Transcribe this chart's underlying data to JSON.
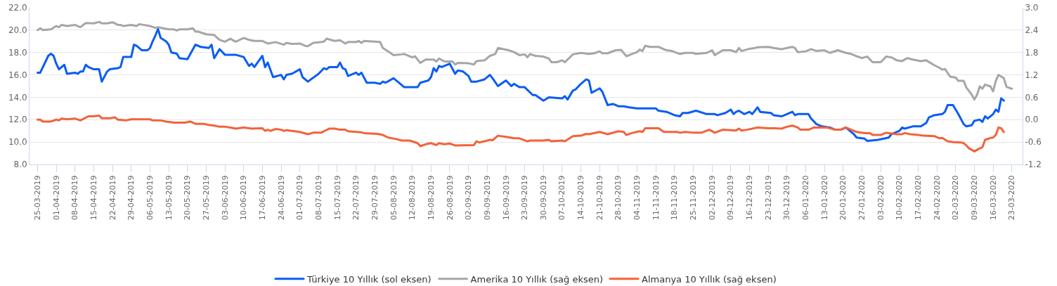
{
  "chart_data": {
    "type": "line",
    "grid": "y",
    "legend": "bottom",
    "xlim": [
      "2019-03-22",
      "2020-03-27"
    ],
    "xticks": [
      {
        "value": "2019-03-25",
        "label": "25-03-2019"
      },
      {
        "value": "2019-04-01",
        "label": "01-04-2019"
      },
      {
        "value": "2019-04-08",
        "label": "08-04-2019"
      },
      {
        "value": "2019-04-15",
        "label": "15-04-2019"
      },
      {
        "value": "2019-04-22",
        "label": "22-04-2019"
      },
      {
        "value": "2019-04-29",
        "label": "29-04-2019"
      },
      {
        "value": "2019-05-06",
        "label": "06-05-2019"
      },
      {
        "value": "2019-05-13",
        "label": "13-05-2019"
      },
      {
        "value": "2019-05-20",
        "label": "20-05-2019"
      },
      {
        "value": "2019-05-27",
        "label": "27-05-2019"
      },
      {
        "value": "2019-06-03",
        "label": "03-06-2019"
      },
      {
        "value": "2019-06-10",
        "label": "10-06-2019"
      },
      {
        "value": "2019-06-17",
        "label": "17-06-2019"
      },
      {
        "value": "2019-06-24",
        "label": "24-06-2019"
      },
      {
        "value": "2019-07-01",
        "label": "01-07-2019"
      },
      {
        "value": "2019-07-08",
        "label": "08-07-2019"
      },
      {
        "value": "2019-07-15",
        "label": "15-07-2019"
      },
      {
        "value": "2019-07-22",
        "label": "22-07-2019"
      },
      {
        "value": "2019-07-29",
        "label": "29-07-2019"
      },
      {
        "value": "2019-08-05",
        "label": "05-08-2019"
      },
      {
        "value": "2019-08-12",
        "label": "12-08-2019"
      },
      {
        "value": "2019-08-19",
        "label": "19-08-2019"
      },
      {
        "value": "2019-08-26",
        "label": "26-08-2019"
      },
      {
        "value": "2019-09-02",
        "label": "02-09-2019"
      },
      {
        "value": "2019-09-09",
        "label": "09-09-2019"
      },
      {
        "value": "2019-09-16",
        "label": "16-09-2019"
      },
      {
        "value": "2019-09-23",
        "label": "23-09-2019"
      },
      {
        "value": "2019-09-30",
        "label": "30-09-2019"
      },
      {
        "value": "2019-10-07",
        "label": "07-10-2019"
      },
      {
        "value": "2019-10-14",
        "label": "14-10-2019"
      },
      {
        "value": "2019-10-21",
        "label": "21-10-2019"
      },
      {
        "value": "2019-10-28",
        "label": "28-10-2019"
      },
      {
        "value": "2019-11-04",
        "label": "04-11-2019"
      },
      {
        "value": "2019-11-11",
        "label": "11-11-2019"
      },
      {
        "value": "2019-11-18",
        "label": "18-11-2019"
      },
      {
        "value": "2019-11-25",
        "label": "25-11-2019"
      },
      {
        "value": "2019-12-02",
        "label": "02-12-2019"
      },
      {
        "value": "2019-12-09",
        "label": "09-12-2019"
      },
      {
        "value": "2019-12-16",
        "label": "16-12-2019"
      },
      {
        "value": "2019-12-23",
        "label": "23-12-2019"
      },
      {
        "value": "2019-12-30",
        "label": "30-12-2019"
      },
      {
        "value": "2020-01-06",
        "label": "06-01-2020"
      },
      {
        "value": "2020-01-13",
        "label": "13-01-2020"
      },
      {
        "value": "2020-01-20",
        "label": "20-01-2020"
      },
      {
        "value": "2020-01-27",
        "label": "27-01-2020"
      },
      {
        "value": "2020-02-03",
        "label": "03-02-2020"
      },
      {
        "value": "2020-02-10",
        "label": "10-02-2020"
      },
      {
        "value": "2020-02-17",
        "label": "17-02-2020"
      },
      {
        "value": "2020-02-24",
        "label": "24-02-2020"
      },
      {
        "value": "2020-03-02",
        "label": "02-03-2020"
      },
      {
        "value": "2020-03-09",
        "label": "09-03-2020"
      },
      {
        "value": "2020-03-16",
        "label": "16-03-2020"
      },
      {
        "value": "2020-03-23",
        "label": "23-03-2020"
      }
    ],
    "ylim": [
      8,
      22
    ],
    "yticks": [
      {
        "value": 8,
        "label": "8.0"
      },
      {
        "value": 10,
        "label": "10.0"
      },
      {
        "value": 12,
        "label": "12.0"
      },
      {
        "value": 14,
        "label": "14.0"
      },
      {
        "value": 16,
        "label": "16.0"
      },
      {
        "value": 18,
        "label": "18.0"
      },
      {
        "value": 20,
        "label": "20.0"
      },
      {
        "value": 22,
        "label": "22.0"
      }
    ],
    "y2lim": [
      -1.2,
      3.0
    ],
    "y2ticks": [
      {
        "value": -1.2,
        "label": "-1.2"
      },
      {
        "value": -0.6,
        "label": "-0.6"
      },
      {
        "value": 0,
        "label": "0.0"
      },
      {
        "value": 0.6,
        "label": "0.6"
      },
      {
        "value": 1.2,
        "label": "1.2"
      },
      {
        "value": 1.8,
        "label": "1.8"
      },
      {
        "value": 2.4,
        "label": "2.4"
      },
      {
        "value": 3.0,
        "label": "3.0"
      }
    ],
    "series": [
      {
        "name": "Türkiye 10 Yıllık (sol eksen)",
        "color": "#0a5cf5",
        "axis": "y",
        "x": [
          "2019-03-25",
          "2019-03-26",
          "2019-03-29",
          "2019-03-30",
          "2019-03-31",
          "2019-04-01",
          "2019-04-02",
          "2019-04-04",
          "2019-04-05",
          "2019-04-08",
          "2019-04-09",
          "2019-04-10",
          "2019-04-11",
          "2019-04-12",
          "2019-04-13",
          "2019-04-15",
          "2019-04-17",
          "2019-04-18",
          "2019-04-20",
          "2019-04-21",
          "2019-04-24",
          "2019-04-25",
          "2019-04-26",
          "2019-04-29",
          "2019-04-30",
          "2019-05-01",
          "2019-05-03",
          "2019-05-05",
          "2019-05-06",
          "2019-05-07",
          "2019-05-08",
          "2019-05-09",
          "2019-05-10",
          "2019-05-12",
          "2019-05-13",
          "2019-05-14",
          "2019-05-16",
          "2019-05-17",
          "2019-05-20",
          "2019-05-23",
          "2019-05-25",
          "2019-05-28",
          "2019-05-29",
          "2019-05-30",
          "2019-06-01",
          "2019-06-03",
          "2019-06-07",
          "2019-06-10",
          "2019-06-12",
          "2019-06-13",
          "2019-06-14",
          "2019-06-17",
          "2019-06-18",
          "2019-06-19",
          "2019-06-21",
          "2019-06-24",
          "2019-06-25",
          "2019-06-26",
          "2019-06-28",
          "2019-07-01",
          "2019-07-02",
          "2019-07-04",
          "2019-07-08",
          "2019-07-10",
          "2019-07-11",
          "2019-07-12",
          "2019-07-15",
          "2019-07-16",
          "2019-07-17",
          "2019-07-18",
          "2019-07-19",
          "2019-07-22",
          "2019-07-23",
          "2019-07-24",
          "2019-07-26",
          "2019-07-29",
          "2019-07-31",
          "2019-08-01",
          "2019-08-02",
          "2019-08-05",
          "2019-08-07",
          "2019-08-09",
          "2019-08-14",
          "2019-08-15",
          "2019-08-18",
          "2019-08-19",
          "2019-08-20",
          "2019-08-21",
          "2019-08-22",
          "2019-08-23",
          "2019-08-26",
          "2019-08-28",
          "2019-08-29",
          "2019-08-31",
          "2019-09-02",
          "2019-09-03",
          "2019-09-05",
          "2019-09-08",
          "2019-09-10",
          "2019-09-11",
          "2019-09-13",
          "2019-09-16",
          "2019-09-18",
          "2019-09-19",
          "2019-09-21",
          "2019-09-23",
          "2019-09-26",
          "2019-09-27",
          "2019-09-30",
          "2019-10-02",
          "2019-10-07",
          "2019-10-08",
          "2019-10-09",
          "2019-10-11",
          "2019-10-12",
          "2019-10-14",
          "2019-10-16",
          "2019-10-17",
          "2019-10-18",
          "2019-10-21",
          "2019-10-22",
          "2019-10-24",
          "2019-10-26",
          "2019-10-28",
          "2019-10-30",
          "2019-11-01",
          "2019-11-04",
          "2019-11-11",
          "2019-11-12",
          "2019-11-15",
          "2019-11-18",
          "2019-11-20",
          "2019-11-21",
          "2019-11-23",
          "2019-11-26",
          "2019-11-30",
          "2019-12-03",
          "2019-12-04",
          "2019-12-07",
          "2019-12-09",
          "2019-12-10",
          "2019-12-11",
          "2019-12-12",
          "2019-12-14",
          "2019-12-16",
          "2019-12-17",
          "2019-12-19",
          "2019-12-20",
          "2019-12-24",
          "2019-12-25",
          "2019-12-28",
          "2019-12-30",
          "2020-01-01",
          "2020-01-02",
          "2020-01-03",
          "2020-01-07",
          "2020-01-08",
          "2020-01-10",
          "2020-01-12",
          "2020-01-15",
          "2020-01-17",
          "2020-01-19",
          "2020-01-21",
          "2020-01-22",
          "2020-01-24",
          "2020-01-25",
          "2020-01-28",
          "2020-01-29",
          "2020-02-02",
          "2020-02-06",
          "2020-02-07",
          "2020-02-10",
          "2020-02-11",
          "2020-02-12",
          "2020-02-15",
          "2020-02-18",
          "2020-02-20",
          "2020-02-21",
          "2020-02-23",
          "2020-02-26",
          "2020-02-27",
          "2020-02-28",
          "2020-03-01",
          "2020-03-02",
          "2020-03-03",
          "2020-03-05",
          "2020-03-06",
          "2020-03-08",
          "2020-03-09",
          "2020-03-11",
          "2020-03-12",
          "2020-03-13",
          "2020-03-14",
          "2020-03-16",
          "2020-03-17",
          "2020-03-18",
          "2020-03-19",
          "2020-03-20"
        ],
        "values": [
          16.2,
          16.2,
          17.7,
          17.9,
          17.7,
          17.0,
          16.5,
          16.9,
          16.1,
          16.2,
          16.1,
          16.3,
          16.3,
          16.9,
          16.7,
          16.5,
          16.5,
          15.4,
          16.3,
          16.5,
          16.6,
          16.7,
          17.6,
          17.6,
          18.7,
          18.6,
          18.2,
          18.2,
          18.4,
          19.0,
          19.5,
          20.1,
          19.3,
          19.0,
          18.7,
          18.0,
          17.9,
          17.5,
          17.4,
          18.7,
          18.5,
          18.4,
          18.7,
          17.5,
          18.3,
          17.8,
          17.8,
          17.6,
          16.8,
          17.0,
          16.7,
          17.7,
          16.7,
          17.1,
          15.8,
          16.0,
          15.6,
          16.0,
          16.1,
          16.5,
          15.8,
          15.4,
          16.1,
          16.6,
          16.5,
          16.7,
          16.7,
          17.1,
          16.6,
          16.5,
          15.9,
          16.2,
          16.0,
          16.2,
          15.3,
          15.3,
          15.2,
          15.4,
          15.3,
          15.7,
          15.3,
          14.9,
          14.9,
          15.3,
          15.5,
          15.8,
          16.6,
          16.3,
          16.8,
          16.7,
          17.0,
          16.1,
          16.4,
          16.3,
          15.9,
          15.4,
          15.4,
          15.6,
          16.0,
          15.7,
          15.0,
          15.5,
          15.0,
          15.2,
          14.9,
          14.9,
          14.2,
          14.2,
          13.7,
          14.0,
          13.9,
          14.1,
          13.8,
          14.6,
          14.7,
          15.2,
          15.6,
          15.5,
          14.4,
          14.8,
          14.5,
          13.3,
          13.4,
          13.2,
          13.2,
          13.1,
          13.0,
          13.0,
          12.8,
          12.7,
          12.4,
          12.3,
          12.6,
          12.6,
          12.8,
          12.5,
          12.5,
          12.4,
          12.6,
          12.9,
          12.5,
          12.7,
          12.8,
          12.5,
          12.7,
          12.5,
          13.1,
          12.7,
          12.6,
          12.4,
          12.3,
          12.5,
          12.7,
          12.4,
          12.5,
          12.5,
          12.1,
          11.6,
          11.4,
          11.3,
          11.1,
          11.1,
          11.3,
          11.1,
          10.7,
          10.4,
          10.3,
          10.1,
          10.2,
          10.4,
          10.7,
          11.0,
          11.3,
          11.2,
          11.4,
          11.4,
          11.7,
          12.2,
          12.4,
          12.5,
          12.7,
          13.3,
          13.3,
          12.9,
          12.5,
          11.6,
          11.4,
          11.5,
          11.9,
          12.0,
          11.8,
          12.3,
          12.1,
          12.5,
          12.9,
          12.7,
          13.9,
          13.7
        ]
      },
      {
        "name": "Amerika 10 Yıllık (sağ eksen)",
        "color": "#a6a6a6",
        "axis": "y2",
        "x": [
          "2019-03-25",
          "2019-03-26",
          "2019-03-27",
          "2019-03-30",
          "2019-04-01",
          "2019-04-02",
          "2019-04-03",
          "2019-04-05",
          "2019-04-08",
          "2019-04-09",
          "2019-04-10",
          "2019-04-12",
          "2019-04-15",
          "2019-04-17",
          "2019-04-18",
          "2019-04-20",
          "2019-04-22",
          "2019-04-24",
          "2019-04-25",
          "2019-04-26",
          "2019-04-29",
          "2019-05-01",
          "2019-05-02",
          "2019-05-06",
          "2019-05-08",
          "2019-05-09",
          "2019-05-11",
          "2019-05-13",
          "2019-05-15",
          "2019-05-16",
          "2019-05-17",
          "2019-05-20",
          "2019-05-22",
          "2019-05-23",
          "2019-05-24",
          "2019-05-27",
          "2019-05-30",
          "2019-05-31",
          "2019-06-01",
          "2019-06-03",
          "2019-06-05",
          "2019-06-07",
          "2019-06-10",
          "2019-06-12",
          "2019-06-14",
          "2019-06-17",
          "2019-06-19",
          "2019-06-22",
          "2019-06-25",
          "2019-06-26",
          "2019-06-28",
          "2019-07-01",
          "2019-07-03",
          "2019-07-04",
          "2019-07-06",
          "2019-07-09",
          "2019-07-10",
          "2019-07-11",
          "2019-07-14",
          "2019-07-16",
          "2019-07-18",
          "2019-07-19",
          "2019-07-22",
          "2019-07-23",
          "2019-07-24",
          "2019-07-25",
          "2019-07-31",
          "2019-08-01",
          "2019-08-04",
          "2019-08-05",
          "2019-08-08",
          "2019-08-09",
          "2019-08-12",
          "2019-08-13",
          "2019-08-15",
          "2019-08-17",
          "2019-08-20",
          "2019-08-21",
          "2019-08-22",
          "2019-08-24",
          "2019-08-27",
          "2019-08-28",
          "2019-08-29",
          "2019-09-02",
          "2019-09-04",
          "2019-09-05",
          "2019-09-08",
          "2019-09-10",
          "2019-09-12",
          "2019-09-13",
          "2019-09-17",
          "2019-09-19",
          "2019-09-21",
          "2019-09-23",
          "2019-09-24",
          "2019-09-25",
          "2019-09-27",
          "2019-09-30",
          "2019-10-02",
          "2019-10-03",
          "2019-10-05",
          "2019-10-07",
          "2019-10-08",
          "2019-10-11",
          "2019-10-14",
          "2019-10-17",
          "2019-10-19",
          "2019-10-21",
          "2019-10-22",
          "2019-10-24",
          "2019-10-27",
          "2019-10-29",
          "2019-10-31",
          "2019-11-02",
          "2019-11-04",
          "2019-11-05",
          "2019-11-06",
          "2019-11-07",
          "2019-11-09",
          "2019-11-12",
          "2019-11-15",
          "2019-11-17",
          "2019-11-20",
          "2019-11-22",
          "2019-11-25",
          "2019-11-26",
          "2019-11-30",
          "2019-12-02",
          "2019-12-03",
          "2019-12-06",
          "2019-12-09",
          "2019-12-11",
          "2019-12-12",
          "2019-12-13",
          "2019-12-16",
          "2019-12-18",
          "2019-12-19",
          "2019-12-23",
          "2019-12-25",
          "2019-12-28",
          "2019-12-30",
          "2020-01-01",
          "2020-01-02",
          "2020-01-03",
          "2020-01-06",
          "2020-01-08",
          "2020-01-10",
          "2020-01-13",
          "2020-01-15",
          "2020-01-18",
          "2020-01-21",
          "2020-01-23",
          "2020-01-25",
          "2020-01-27",
          "2020-01-29",
          "2020-01-30",
          "2020-01-31",
          "2020-02-03",
          "2020-02-04",
          "2020-02-05",
          "2020-02-07",
          "2020-02-09",
          "2020-02-11",
          "2020-02-13",
          "2020-02-15",
          "2020-02-18",
          "2020-02-20",
          "2020-02-23",
          "2020-02-25",
          "2020-02-26",
          "2020-02-27",
          "2020-02-29",
          "2020-03-02",
          "2020-03-03",
          "2020-03-05",
          "2020-03-06",
          "2020-03-08",
          "2020-03-09",
          "2020-03-10",
          "2020-03-11",
          "2020-03-12",
          "2020-03-13",
          "2020-03-15",
          "2020-03-16",
          "2020-03-17",
          "2020-03-18",
          "2020-03-20",
          "2020-03-21",
          "2020-03-23"
        ],
        "values": [
          2.4,
          2.45,
          2.4,
          2.42,
          2.51,
          2.48,
          2.54,
          2.51,
          2.54,
          2.51,
          2.48,
          2.59,
          2.58,
          2.62,
          2.58,
          2.58,
          2.61,
          2.54,
          2.54,
          2.51,
          2.54,
          2.51,
          2.56,
          2.51,
          2.46,
          2.48,
          2.45,
          2.42,
          2.42,
          2.39,
          2.42,
          2.42,
          2.45,
          2.36,
          2.36,
          2.29,
          2.27,
          2.2,
          2.14,
          2.09,
          2.17,
          2.09,
          2.19,
          2.14,
          2.11,
          2.11,
          2.04,
          2.08,
          2.01,
          2.06,
          2.03,
          2.04,
          1.98,
          1.97,
          2.06,
          2.08,
          2.09,
          2.17,
          2.11,
          2.13,
          2.04,
          2.08,
          2.08,
          2.11,
          2.06,
          2.11,
          2.08,
          1.92,
          1.78,
          1.73,
          1.75,
          1.76,
          1.67,
          1.7,
          1.52,
          1.61,
          1.61,
          1.56,
          1.64,
          1.56,
          1.56,
          1.48,
          1.52,
          1.51,
          1.48,
          1.57,
          1.59,
          1.71,
          1.76,
          1.92,
          1.86,
          1.81,
          1.73,
          1.75,
          1.67,
          1.76,
          1.71,
          1.69,
          1.64,
          1.54,
          1.54,
          1.59,
          1.54,
          1.75,
          1.79,
          1.76,
          1.78,
          1.83,
          1.78,
          1.78,
          1.86,
          1.87,
          1.7,
          1.76,
          1.81,
          1.88,
          1.84,
          1.98,
          1.95,
          1.95,
          1.86,
          1.84,
          1.76,
          1.79,
          1.79,
          1.76,
          1.79,
          1.86,
          1.73,
          1.86,
          1.86,
          1.81,
          1.92,
          1.84,
          1.9,
          1.92,
          1.94,
          1.95,
          1.92,
          1.89,
          1.92,
          1.95,
          1.92,
          1.81,
          1.83,
          1.89,
          1.84,
          1.86,
          1.79,
          1.86,
          1.79,
          1.76,
          1.7,
          1.65,
          1.69,
          1.61,
          1.54,
          1.54,
          1.61,
          1.69,
          1.67,
          1.59,
          1.57,
          1.65,
          1.61,
          1.57,
          1.59,
          1.46,
          1.39,
          1.34,
          1.36,
          1.15,
          1.13,
          1.04,
          1.04,
          0.86,
          0.67,
          0.54,
          0.67,
          0.89,
          0.83,
          0.94,
          0.89,
          0.76,
          1.04,
          1.2,
          1.11,
          0.88,
          0.83
        ]
      },
      {
        "name": "Almanya 10 Yıllık (sağ eksen)",
        "color": "#f4623a",
        "axis": "y2",
        "x": [
          "2019-03-25",
          "2019-03-26",
          "2019-03-27",
          "2019-03-30",
          "2019-04-01",
          "2019-04-02",
          "2019-04-03",
          "2019-04-05",
          "2019-04-08",
          "2019-04-10",
          "2019-04-13",
          "2019-04-15",
          "2019-04-17",
          "2019-04-18",
          "2019-04-21",
          "2019-04-23",
          "2019-04-24",
          "2019-04-27",
          "2019-04-29",
          "2019-05-06",
          "2019-05-07",
          "2019-05-10",
          "2019-05-12",
          "2019-05-15",
          "2019-05-19",
          "2019-05-21",
          "2019-05-23",
          "2019-05-26",
          "2019-05-28",
          "2019-05-30",
          "2019-06-01",
          "2019-06-03",
          "2019-06-05",
          "2019-06-07",
          "2019-06-10",
          "2019-06-13",
          "2019-06-17",
          "2019-06-18",
          "2019-06-19",
          "2019-06-20",
          "2019-06-22",
          "2019-06-24",
          "2019-06-25",
          "2019-06-26",
          "2019-07-01",
          "2019-07-04",
          "2019-07-06",
          "2019-07-09",
          "2019-07-10",
          "2019-07-12",
          "2019-07-14",
          "2019-07-16",
          "2019-07-18",
          "2019-07-19",
          "2019-07-24",
          "2019-07-25",
          "2019-07-30",
          "2019-08-01",
          "2019-08-03",
          "2019-08-06",
          "2019-08-08",
          "2019-08-11",
          "2019-08-14",
          "2019-08-15",
          "2019-08-17",
          "2019-08-19",
          "2019-08-21",
          "2019-08-22",
          "2019-08-24",
          "2019-08-26",
          "2019-08-28",
          "2019-09-04",
          "2019-09-05",
          "2019-09-06",
          "2019-09-08",
          "2019-09-10",
          "2019-09-11",
          "2019-09-13",
          "2019-09-16",
          "2019-09-19",
          "2019-09-21",
          "2019-09-24",
          "2019-09-25",
          "2019-09-30",
          "2019-10-02",
          "2019-10-03",
          "2019-10-07",
          "2019-10-08",
          "2019-10-11",
          "2019-10-14",
          "2019-10-16",
          "2019-10-17",
          "2019-10-21",
          "2019-10-24",
          "2019-10-28",
          "2019-10-30",
          "2019-10-31",
          "2019-11-02",
          "2019-11-05",
          "2019-11-06",
          "2019-11-07",
          "2019-11-12",
          "2019-11-14",
          "2019-11-19",
          "2019-11-20",
          "2019-11-22",
          "2019-11-25",
          "2019-11-28",
          "2019-12-01",
          "2019-12-03",
          "2019-12-06",
          "2019-12-11",
          "2019-12-12",
          "2019-12-13",
          "2019-12-15",
          "2019-12-19",
          "2019-12-23",
          "2019-12-25",
          "2019-12-28",
          "2019-12-30",
          "2020-01-01",
          "2020-01-03",
          "2020-01-04",
          "2020-01-07",
          "2020-01-08",
          "2020-01-09",
          "2020-01-14",
          "2020-01-17",
          "2020-01-19",
          "2020-01-21",
          "2020-01-23",
          "2020-01-25",
          "2020-01-28",
          "2020-01-30",
          "2020-01-31",
          "2020-02-03",
          "2020-02-05",
          "2020-02-06",
          "2020-02-09",
          "2020-02-11",
          "2020-02-12",
          "2020-02-14",
          "2020-02-17",
          "2020-02-19",
          "2020-02-23",
          "2020-02-25",
          "2020-02-26",
          "2020-02-28",
          "2020-03-01",
          "2020-03-04",
          "2020-03-05",
          "2020-03-06",
          "2020-03-07",
          "2020-03-09",
          "2020-03-11",
          "2020-03-12",
          "2020-03-13",
          "2020-03-15",
          "2020-03-16",
          "2020-03-17",
          "2020-03-18",
          "2020-03-19",
          "2020-03-20"
        ],
        "values": [
          0.0,
          0.0,
          -0.05,
          -0.05,
          0.0,
          -0.02,
          0.03,
          0.01,
          0.03,
          -0.02,
          0.09,
          0.09,
          0.11,
          0.04,
          0.04,
          0.06,
          0.0,
          -0.02,
          0.01,
          0.01,
          -0.02,
          -0.02,
          -0.05,
          -0.08,
          -0.08,
          -0.05,
          -0.11,
          -0.11,
          -0.14,
          -0.16,
          -0.19,
          -0.19,
          -0.21,
          -0.24,
          -0.21,
          -0.24,
          -0.23,
          -0.3,
          -0.27,
          -0.3,
          -0.25,
          -0.27,
          -0.3,
          -0.28,
          -0.33,
          -0.39,
          -0.35,
          -0.35,
          -0.31,
          -0.24,
          -0.24,
          -0.27,
          -0.27,
          -0.31,
          -0.34,
          -0.36,
          -0.38,
          -0.41,
          -0.48,
          -0.52,
          -0.56,
          -0.56,
          -0.63,
          -0.71,
          -0.66,
          -0.63,
          -0.68,
          -0.63,
          -0.66,
          -0.64,
          -0.69,
          -0.68,
          -0.58,
          -0.61,
          -0.58,
          -0.54,
          -0.55,
          -0.43,
          -0.46,
          -0.5,
          -0.5,
          -0.58,
          -0.56,
          -0.56,
          -0.54,
          -0.58,
          -0.56,
          -0.58,
          -0.44,
          -0.43,
          -0.38,
          -0.39,
          -0.33,
          -0.39,
          -0.31,
          -0.33,
          -0.41,
          -0.36,
          -0.31,
          -0.33,
          -0.23,
          -0.23,
          -0.33,
          -0.33,
          -0.35,
          -0.33,
          -0.35,
          -0.35,
          -0.27,
          -0.35,
          -0.27,
          -0.29,
          -0.24,
          -0.29,
          -0.27,
          -0.21,
          -0.23,
          -0.23,
          -0.24,
          -0.19,
          -0.16,
          -0.21,
          -0.27,
          -0.27,
          -0.24,
          -0.21,
          -0.21,
          -0.27,
          -0.27,
          -0.21,
          -0.27,
          -0.33,
          -0.36,
          -0.36,
          -0.41,
          -0.41,
          -0.35,
          -0.36,
          -0.39,
          -0.39,
          -0.36,
          -0.39,
          -0.41,
          -0.43,
          -0.44,
          -0.5,
          -0.49,
          -0.58,
          -0.6,
          -0.61,
          -0.63,
          -0.69,
          -0.77,
          -0.85,
          -0.77,
          -0.74,
          -0.54,
          -0.49,
          -0.48,
          -0.41,
          -0.21,
          -0.23,
          -0.33
        ]
      }
    ]
  }
}
